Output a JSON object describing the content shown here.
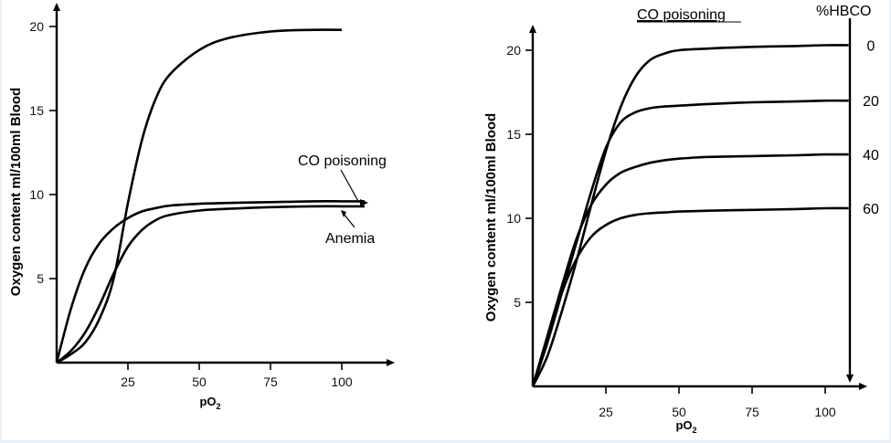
{
  "chart_data": [
    {
      "type": "line",
      "xlabel": "pO",
      "xlabel_sub": "2",
      "ylabel": "Oxygen content ml/100ml Blood",
      "x_ticks": [
        25,
        50,
        75,
        100
      ],
      "y_ticks": [
        5,
        10,
        15,
        20
      ],
      "xlim": [
        0,
        108
      ],
      "ylim": [
        0,
        21
      ],
      "series": [
        {
          "name": "",
          "x": [
            0,
            5,
            10,
            15,
            20,
            25,
            30,
            35,
            40,
            50,
            60,
            75,
            90,
            100
          ],
          "y": [
            0,
            0.5,
            1.2,
            2.6,
            5.0,
            9.5,
            13.3,
            15.8,
            17.2,
            18.6,
            19.3,
            19.7,
            19.8,
            19.8
          ]
        },
        {
          "name": "CO poisoning",
          "x": [
            0,
            5,
            10,
            15,
            20,
            25,
            30,
            35,
            40,
            50,
            60,
            75,
            90,
            100,
            108
          ],
          "y": [
            0,
            3.2,
            5.6,
            7.1,
            8.0,
            8.6,
            9.0,
            9.2,
            9.35,
            9.45,
            9.5,
            9.55,
            9.6,
            9.6,
            9.6
          ]
        },
        {
          "name": "Anemia",
          "x": [
            0,
            5,
            10,
            15,
            20,
            25,
            30,
            35,
            40,
            50,
            60,
            75,
            90,
            100,
            108
          ],
          "y": [
            0,
            0.7,
            1.8,
            3.4,
            5.3,
            6.9,
            7.9,
            8.5,
            8.8,
            9.05,
            9.15,
            9.25,
            9.3,
            9.3,
            9.3
          ]
        }
      ],
      "annotations": [
        {
          "text": "CO poisoning",
          "target_series": "CO poisoning"
        },
        {
          "text": "Anemia",
          "target_series": "Anemia"
        }
      ]
    },
    {
      "type": "line",
      "title": "CO poisoning",
      "xlabel": "pO",
      "xlabel_sub": "2",
      "ylabel": "Oxygen content ml/100ml Blood",
      "y2label": "%HBCO",
      "x_ticks": [
        25,
        50,
        75,
        100
      ],
      "y_ticks": [
        5,
        10,
        15,
        20
      ],
      "y2_ticks": [
        "0",
        "20",
        "40",
        "60"
      ],
      "xlim": [
        0,
        108
      ],
      "ylim": [
        0,
        21.5
      ],
      "series": [
        {
          "name": "0",
          "x": [
            0,
            5,
            10,
            15,
            20,
            25,
            30,
            35,
            40,
            45,
            50,
            60,
            75,
            90,
            100,
            108
          ],
          "y": [
            0,
            1.8,
            4.5,
            7.5,
            10.8,
            14.0,
            16.6,
            18.4,
            19.4,
            19.8,
            20.0,
            20.1,
            20.2,
            20.25,
            20.3,
            20.3
          ]
        },
        {
          "name": "20",
          "x": [
            0,
            5,
            10,
            15,
            20,
            25,
            30,
            35,
            40,
            45,
            50,
            60,
            75,
            90,
            100,
            108
          ],
          "y": [
            0,
            2.6,
            5.6,
            8.6,
            11.6,
            14.2,
            15.7,
            16.3,
            16.55,
            16.65,
            16.7,
            16.8,
            16.9,
            16.95,
            17.0,
            17.0
          ]
        },
        {
          "name": "40",
          "x": [
            0,
            5,
            10,
            15,
            20,
            25,
            30,
            35,
            40,
            45,
            50,
            60,
            75,
            90,
            100,
            108
          ],
          "y": [
            0,
            3.0,
            6.0,
            8.8,
            10.8,
            12.0,
            12.7,
            13.05,
            13.3,
            13.45,
            13.55,
            13.65,
            13.7,
            13.75,
            13.8,
            13.8
          ]
        },
        {
          "name": "60",
          "x": [
            0,
            5,
            10,
            15,
            20,
            25,
            30,
            35,
            40,
            45,
            50,
            60,
            75,
            90,
            100,
            108
          ],
          "y": [
            0,
            2.9,
            5.6,
            7.6,
            8.9,
            9.6,
            10.0,
            10.2,
            10.3,
            10.35,
            10.4,
            10.45,
            10.5,
            10.55,
            10.6,
            10.6
          ]
        }
      ]
    }
  ]
}
